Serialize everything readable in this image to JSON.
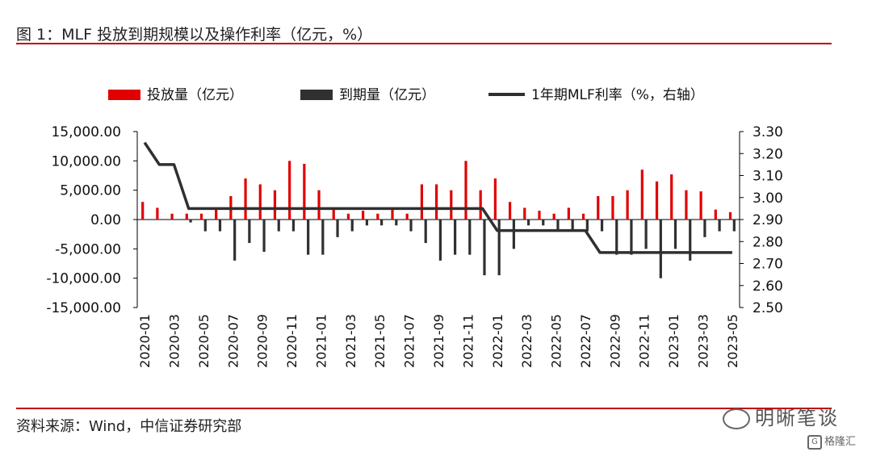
{
  "header": {
    "title": "图 1：MLF 投放到期规模以及操作利率（亿元，%）"
  },
  "footer": {
    "source": "资料来源：Wind，中信证券研究部",
    "watermark": "明晰笔谈",
    "brand": "格隆汇",
    "brand_mark": "G"
  },
  "colors": {
    "rule": "#c00000",
    "issue": "#e00000",
    "maturity": "#303030",
    "rate": "#303030"
  },
  "chart_data": {
    "type": "bar+line",
    "title": "MLF 投放到期规模以及操作利率（亿元，%）",
    "legend": [
      "投放量（亿元）",
      "到期量（亿元）",
      "1年期MLF利率（%，右轴）"
    ],
    "categories": [
      "2020-01",
      "2020-02",
      "2020-03",
      "2020-04",
      "2020-05",
      "2020-06",
      "2020-07",
      "2020-08",
      "2020-09",
      "2020-10",
      "2020-11",
      "2020-12",
      "2021-01",
      "2021-02",
      "2021-03",
      "2021-04",
      "2021-05",
      "2021-06",
      "2021-07",
      "2021-08",
      "2021-09",
      "2021-10",
      "2021-11",
      "2021-12",
      "2022-01",
      "2022-02",
      "2022-03",
      "2022-04",
      "2022-05",
      "2022-06",
      "2022-07",
      "2022-08",
      "2022-09",
      "2022-10",
      "2022-11",
      "2022-12",
      "2023-01",
      "2023-02",
      "2023-03",
      "2023-04",
      "2023-05"
    ],
    "x_tick_labels": [
      "2020-01",
      "2020-03",
      "2020-05",
      "2020-07",
      "2020-09",
      "2020-11",
      "2021-01",
      "2021-03",
      "2021-05",
      "2021-07",
      "2021-09",
      "2021-11",
      "2022-01",
      "2022-03",
      "2022-05",
      "2022-07",
      "2022-09",
      "2022-11",
      "2023-01",
      "2023-03",
      "2023-05"
    ],
    "series": [
      {
        "name": "投放量（亿元）",
        "axis": "left",
        "kind": "bar",
        "values": [
          3000,
          2000,
          1000,
          1000,
          1000,
          2000,
          4000,
          7000,
          6000,
          5000,
          10000,
          9500,
          5000,
          2000,
          1000,
          1500,
          1000,
          2000,
          1000,
          6000,
          6000,
          5000,
          10000,
          5000,
          7000,
          3000,
          2000,
          1500,
          1000,
          2000,
          1000,
          4000,
          4000,
          5000,
          8500,
          6500,
          7700,
          5000,
          4800,
          1700,
          1250
        ]
      },
      {
        "name": "到期量（亿元）",
        "axis": "left",
        "kind": "bar",
        "values": [
          0,
          0,
          0,
          -500,
          -2000,
          -2000,
          -7000,
          -4000,
          -5500,
          -2000,
          -2000,
          -6000,
          -6000,
          -3000,
          -2000,
          -1000,
          -1000,
          -1000,
          -2000,
          -4000,
          -7000,
          -6000,
          -6000,
          -9500,
          -9500,
          -5000,
          -1000,
          -1000,
          -2000,
          -2000,
          -2000,
          -2000,
          -6000,
          -6000,
          -5000,
          -10000,
          -5000,
          -7000,
          -3000,
          -2000,
          -2000
        ]
      },
      {
        "name": "1年期MLF利率（%，右轴）",
        "axis": "right",
        "kind": "line",
        "values": [
          3.25,
          3.15,
          3.15,
          2.95,
          2.95,
          2.95,
          2.95,
          2.95,
          2.95,
          2.95,
          2.95,
          2.95,
          2.95,
          2.95,
          2.95,
          2.95,
          2.95,
          2.95,
          2.95,
          2.95,
          2.95,
          2.95,
          2.95,
          2.95,
          2.85,
          2.85,
          2.85,
          2.85,
          2.85,
          2.85,
          2.85,
          2.75,
          2.75,
          2.75,
          2.75,
          2.75,
          2.75,
          2.75,
          2.75,
          2.75,
          2.75
        ]
      }
    ],
    "y_left": {
      "min": -15000,
      "max": 15000,
      "ticks": [
        "15,000.00",
        "10,000.00",
        "5,000.00",
        "0.00",
        "-5,000.00",
        "-10,000.00",
        "-15,000.00"
      ]
    },
    "y_right": {
      "min": 2.5,
      "max": 3.3,
      "ticks": [
        "3.30",
        "3.20",
        "3.10",
        "3.00",
        "2.90",
        "2.80",
        "2.70",
        "2.60",
        "2.50"
      ]
    }
  }
}
